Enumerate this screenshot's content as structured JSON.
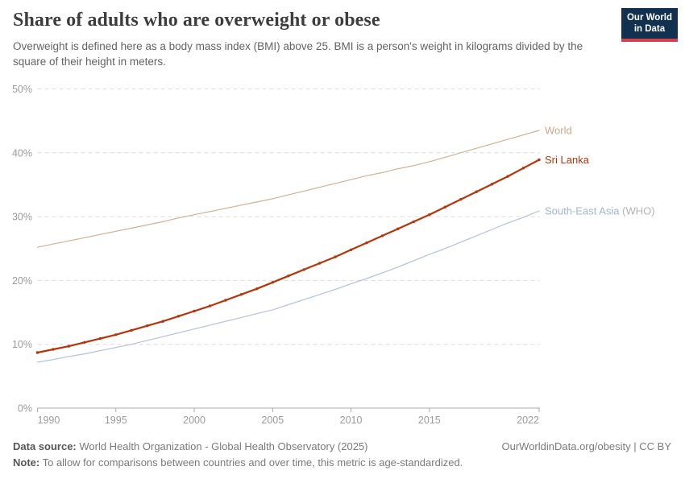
{
  "header": {
    "title": "Share of adults who are overweight or obese",
    "subtitle": "Overweight is defined here as a body mass index (BMI) above 25. BMI is a person's weight in kilograms divided by the square of their height in meters.",
    "logo": {
      "line1": "Our World",
      "line2": "in Data"
    }
  },
  "chart_data": {
    "type": "line",
    "title": "Share of adults who are overweight or obese",
    "xlabel": "",
    "ylabel": "",
    "xlim": [
      1990,
      2022
    ],
    "ylim": [
      0,
      50
    ],
    "xticks": [
      1990,
      1995,
      2000,
      2005,
      2010,
      2015,
      2022
    ],
    "yticks": [
      0,
      10,
      20,
      30,
      40,
      50
    ],
    "ytick_suffix": "%",
    "grid": "horizontal-dashed",
    "legend_position": "end-of-line-labels",
    "colors": {
      "axis": "#a8a8a8",
      "grid": "#dcdcdc",
      "tick_label": "#9a9a9a"
    },
    "x": [
      1990,
      1991,
      1992,
      1993,
      1994,
      1995,
      1996,
      1997,
      1998,
      1999,
      2000,
      2001,
      2002,
      2003,
      2004,
      2005,
      2006,
      2007,
      2008,
      2009,
      2010,
      2011,
      2012,
      2013,
      2014,
      2015,
      2016,
      2017,
      2018,
      2019,
      2020,
      2021,
      2022
    ],
    "series": [
      {
        "name": "World",
        "color": "#D2B094",
        "label_parts": [
          {
            "text": "World",
            "color": "#C7A98E"
          }
        ],
        "width": 1.2,
        "markers": false,
        "values": [
          25.2,
          25.7,
          26.2,
          26.7,
          27.2,
          27.7,
          28.2,
          28.7,
          29.2,
          29.8,
          30.3,
          30.8,
          31.3,
          31.8,
          32.3,
          32.8,
          33.4,
          34.0,
          34.6,
          35.2,
          35.8,
          36.4,
          36.9,
          37.5,
          38.0,
          38.6,
          39.3,
          40.0,
          40.7,
          41.4,
          42.1,
          42.8,
          43.5
        ]
      },
      {
        "name": "South-East Asia (WHO)",
        "color": "#AFC3D9",
        "label_parts": [
          {
            "text": "South-East Asia ",
            "color": "#A3B5C9"
          },
          {
            "text": "(WHO)",
            "color": "#b3b3b3"
          }
        ],
        "width": 1.2,
        "markers": false,
        "values": [
          7.2,
          7.6,
          8.1,
          8.5,
          9.0,
          9.5,
          10.0,
          10.6,
          11.2,
          11.8,
          12.4,
          13.0,
          13.6,
          14.2,
          14.8,
          15.4,
          16.2,
          17.0,
          17.8,
          18.6,
          19.5,
          20.3,
          21.2,
          22.1,
          23.1,
          24.1,
          25.0,
          26.0,
          27.0,
          28.0,
          29.0,
          29.9,
          30.9
        ]
      },
      {
        "name": "Sri Lanka",
        "color": "#B5350B",
        "label_parts": [
          {
            "text": "Sri Lanka",
            "color": "#B5350B"
          }
        ],
        "width": 2.2,
        "markers": true,
        "values": [
          8.7,
          9.2,
          9.7,
          10.3,
          10.9,
          11.5,
          12.2,
          12.9,
          13.6,
          14.4,
          15.2,
          16.0,
          16.9,
          17.8,
          18.7,
          19.7,
          20.7,
          21.7,
          22.7,
          23.7,
          24.8,
          25.9,
          27.0,
          28.1,
          29.2,
          30.3,
          31.5,
          32.7,
          33.9,
          35.1,
          36.3,
          37.6,
          38.9
        ]
      }
    ]
  },
  "footer": {
    "data_source_label": "Data source:",
    "data_source_text": " World Health Organization - Global Health Observatory (2025)",
    "note_label": "Note:",
    "note_text": " To allow for comparisons between countries and over time, this metric is age-standardized.",
    "rights": "OurWorldinData.org/obesity | CC BY"
  }
}
